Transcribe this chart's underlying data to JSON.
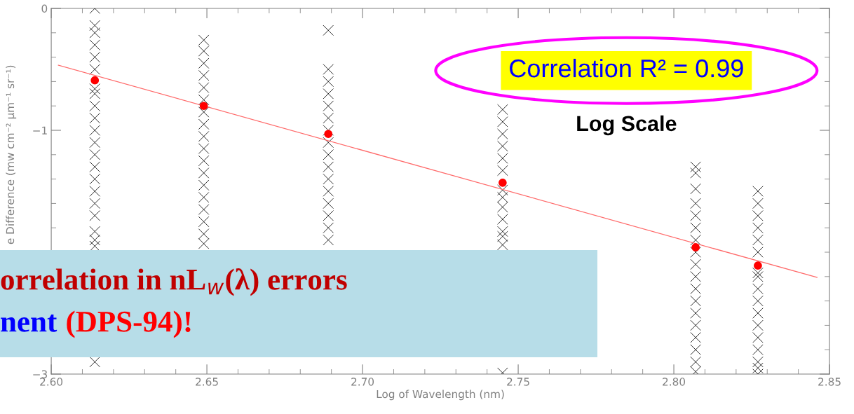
{
  "chart_data": {
    "type": "scatter",
    "xlabel": "Log of Wavelength (nm)",
    "ylabel": "e Difference (mw cm⁻² μm⁻¹ sr⁻¹)",
    "xlim": [
      2.6,
      2.85
    ],
    "xticks": [
      {
        "value": 2.6,
        "label": "2.60"
      },
      {
        "value": 2.65,
        "label": "2.65"
      },
      {
        "value": 2.7,
        "label": "2.70"
      },
      {
        "value": 2.75,
        "label": "2.75"
      },
      {
        "value": 2.8,
        "label": "2.80"
      },
      {
        "value": 2.85,
        "label": "2.85"
      }
    ],
    "ylim": [
      -3,
      0
    ],
    "yticks": [
      {
        "value": -3,
        "label": "−3"
      },
      {
        "value": -1,
        "label": "−1"
      },
      0
    ],
    "grid": false,
    "series": [
      {
        "color": "#000000",
        "marker": "cross",
        "x": [
          2.614,
          2.614,
          2.614,
          2.614,
          2.614,
          2.614,
          2.614,
          2.614,
          2.614,
          2.614,
          2.614,
          2.614,
          2.614,
          2.614,
          2.614,
          2.614,
          2.614,
          2.614,
          2.614,
          2.614,
          2.614,
          2.614,
          2.649,
          2.649,
          2.649,
          2.649,
          2.649,
          2.649,
          2.649,
          2.649,
          2.649,
          2.649,
          2.649,
          2.649,
          2.649,
          2.649,
          2.649,
          2.649,
          2.649,
          2.649,
          2.689,
          2.689,
          2.689,
          2.689,
          2.689,
          2.689,
          2.689,
          2.689,
          2.689,
          2.689,
          2.689,
          2.689,
          2.689,
          2.689,
          2.689,
          2.689,
          2.745,
          2.745,
          2.745,
          2.745,
          2.745,
          2.745,
          2.745,
          2.745,
          2.745,
          2.745,
          2.745,
          2.745,
          2.745,
          2.745,
          2.807,
          2.807,
          2.807,
          2.807,
          2.807,
          2.807,
          2.807,
          2.807,
          2.807,
          2.807,
          2.807,
          2.807,
          2.807,
          2.807,
          2.807,
          2.807,
          2.807,
          2.807,
          2.827,
          2.827,
          2.827,
          2.827,
          2.827,
          2.827,
          2.827,
          2.827,
          2.827,
          2.827,
          2.827,
          2.827,
          2.827,
          2.827,
          2.827,
          2.827,
          2.827
        ],
        "values": [
          0,
          -0.14,
          -0.2,
          -0.3,
          -0.4,
          -0.5,
          -0.66,
          -0.7,
          -0.8,
          -0.9,
          -1.0,
          -1.1,
          -1.2,
          -1.3,
          -1.4,
          -1.5,
          -1.6,
          -1.7,
          -1.83,
          -1.9,
          -1.95,
          -2.9,
          -0.26,
          -0.35,
          -0.45,
          -0.55,
          -0.65,
          -0.75,
          -0.85,
          -0.95,
          -1.05,
          -1.15,
          -1.25,
          -1.35,
          -1.45,
          -1.55,
          -1.65,
          -1.75,
          -1.85,
          -1.93,
          -0.18,
          -0.5,
          -0.6,
          -0.7,
          -0.8,
          -0.9,
          -1.0,
          -1.1,
          -1.2,
          -1.3,
          -1.4,
          -1.5,
          -1.6,
          -1.7,
          -1.8,
          -1.9,
          -0.83,
          -0.93,
          -1.03,
          -1.13,
          -1.23,
          -1.33,
          -1.49,
          -1.55,
          -1.63,
          -1.73,
          -1.83,
          -1.87,
          -1.94,
          -2.99,
          -1.3,
          -1.35,
          -1.48,
          -1.6,
          -1.7,
          -1.8,
          -1.9,
          -2.0,
          -2.1,
          -2.2,
          -2.3,
          -2.4,
          -2.5,
          -2.6,
          -2.7,
          -2.8,
          -2.9,
          -2.98,
          -1.5,
          -1.6,
          -1.7,
          -1.8,
          -1.9,
          -2.0,
          -2.17,
          -2.2,
          -2.3,
          -2.4,
          -2.5,
          -2.6,
          -2.7,
          -2.8,
          -2.9,
          -2.95,
          -3.0
        ]
      },
      {
        "type": "scatter",
        "color": "#ff0000",
        "marker": "circle",
        "x": [
          2.614,
          2.649,
          2.689,
          2.745,
          2.807,
          2.827
        ],
        "values": [
          -0.59,
          -0.8,
          -1.03,
          -1.43,
          -1.96,
          -2.11
        ]
      },
      {
        "type": "line",
        "color": "#ff6a6a",
        "marker": "none",
        "x": [
          2.6023,
          2.846
        ],
        "values": [
          -0.466,
          -2.207
        ]
      }
    ],
    "annotations": [
      "Correlation R² = 0.99",
      "Log Scale",
      "orrelation in nL$_{w}$(λ) errors",
      "nent",
      "(DPS-94)!"
    ]
  }
}
